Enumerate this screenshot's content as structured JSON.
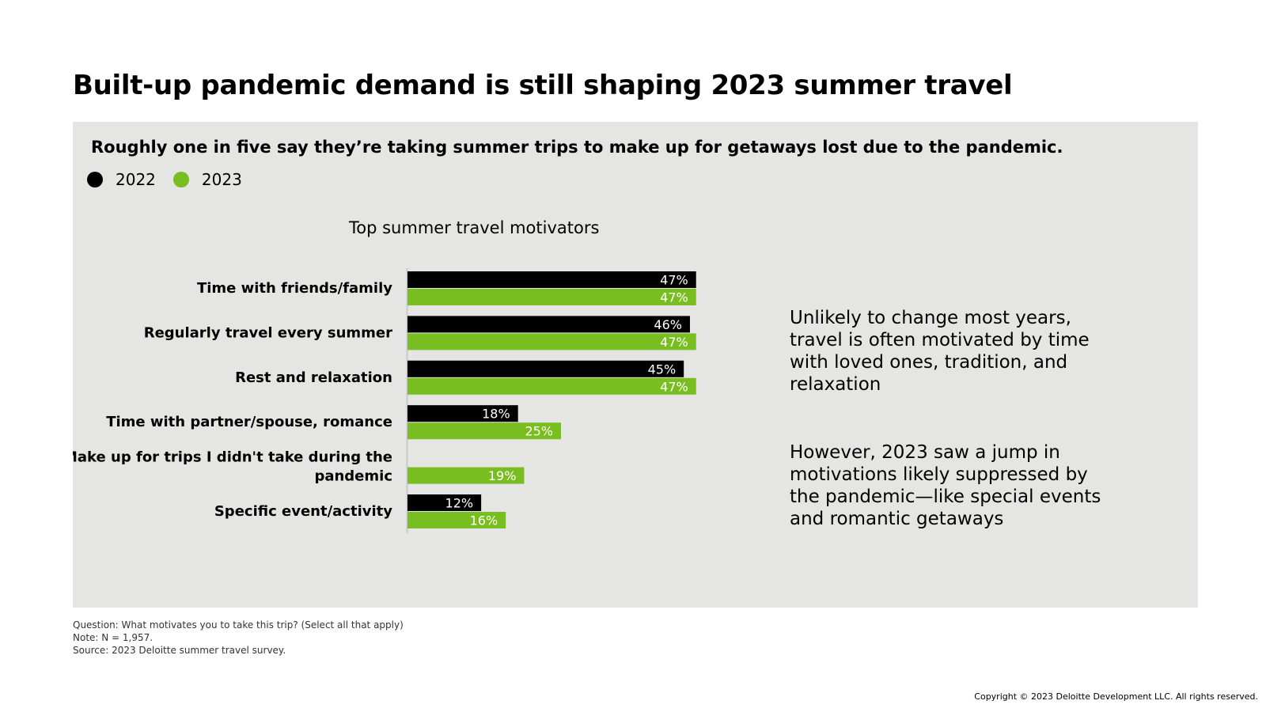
{
  "title": "Built-up pandemic demand is still shaping 2023 summer travel",
  "subtitle": "Roughly one in five say they’re taking summer trips to make up for getaways lost due to the pandemic.",
  "legend": [
    {
      "label": "2022",
      "color": "#000000"
    },
    {
      "label": "2023",
      "color": "#78be20"
    }
  ],
  "insights": {
    "first": "Unlikely to change most years, travel is often motivated by time with loved ones, tradition, and relaxation",
    "second": "However, 2023 saw a jump in motivations likely suppressed by the pandemic—like special events and romantic getaways"
  },
  "chart_data": {
    "type": "bar",
    "orientation": "horizontal",
    "title": "Top summer travel motivators",
    "categories": [
      [
        "Time with friends/family"
      ],
      [
        "Regularly travel every summer"
      ],
      [
        "Rest and relaxation"
      ],
      [
        "Time with partner/spouse, romance"
      ],
      [
        "Make up for trips I didn't take during the",
        "pandemic"
      ],
      [
        "Specific event/activity"
      ]
    ],
    "series": [
      {
        "name": "2022",
        "color": "#000000",
        "values": [
          47,
          46,
          45,
          18,
          null,
          12
        ],
        "labels": [
          "47%",
          "46%",
          "45%",
          "18%",
          "",
          "12%"
        ]
      },
      {
        "name": "2023",
        "color": "#78be20",
        "values": [
          47,
          47,
          47,
          25,
          19,
          16
        ],
        "labels": [
          "47%",
          "47%",
          "47%",
          "25%",
          "19%",
          "16%"
        ]
      }
    ],
    "xlabel": "",
    "ylabel": "",
    "xlim": [
      0,
      50
    ],
    "value_unit": "%"
  },
  "footnotes": [
    "Question: What motivates you to take this trip? (Select all that apply)",
    "Note: N = 1,957.",
    "Source: 2023 Deloitte summer travel survey."
  ],
  "copyright": "Copyright © 2023 Deloitte Development LLC. All rights reserved."
}
